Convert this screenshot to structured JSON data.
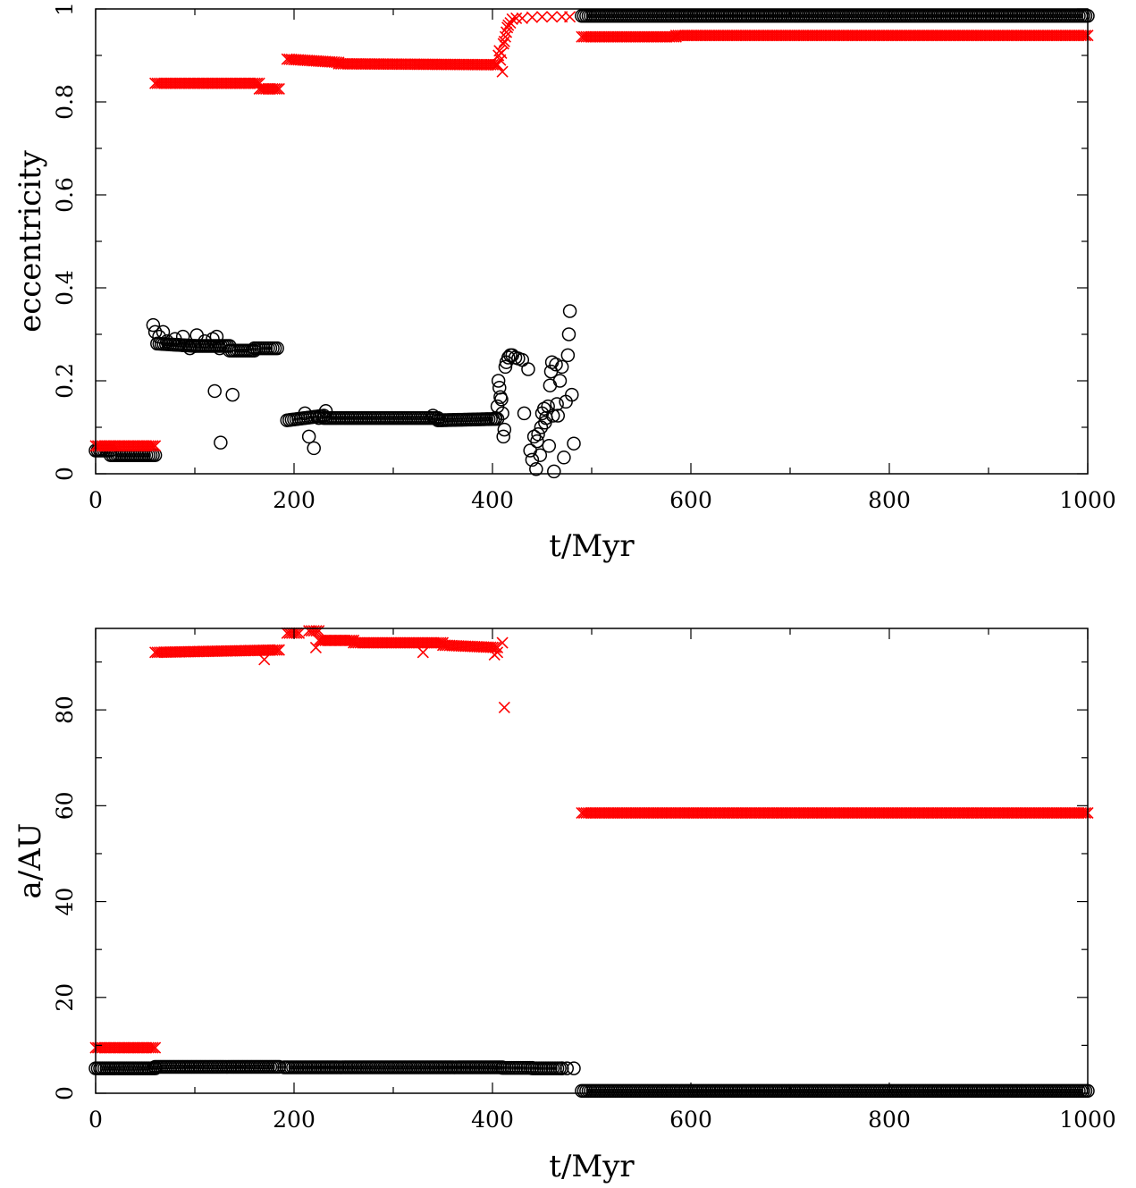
{
  "colors": {
    "black_series": "#000000",
    "red_series": "#ff0000",
    "background": "#ffffff"
  },
  "chart_data": [
    {
      "type": "scatter",
      "xlabel": "t/Myr",
      "ylabel": "eccentricity",
      "xlim": [
        0,
        1000
      ],
      "ylim": [
        0,
        1
      ],
      "xticks": [
        0,
        200,
        400,
        600,
        800,
        1000
      ],
      "yticks": [
        0,
        0.2,
        0.4,
        0.6,
        0.8,
        1
      ],
      "xtick_labels": [
        "0",
        "200",
        "400",
        "600",
        "800",
        "1000"
      ],
      "ytick_labels": [
        "0",
        "0.2",
        "0.4",
        "0.6",
        "0.8",
        "1"
      ],
      "grid": false,
      "series": [
        {
          "marker": "open-circle",
          "color": "#000000",
          "segments": [
            {
              "x": [
                0,
                15
              ],
              "y": [
                0.05,
                0.05
              ]
            },
            {
              "x": [
                15,
                60
              ],
              "y": [
                0.04,
                0.04
              ]
            },
            {
              "x": [
                62,
                100
              ],
              "y": [
                0.28,
                0.275
              ]
            },
            {
              "x": [
                100,
                135
              ],
              "y": [
                0.275,
                0.275
              ]
            },
            {
              "x": [
                135,
                160
              ],
              "y": [
                0.265,
                0.265
              ]
            },
            {
              "x": [
                160,
                183
              ],
              "y": [
                0.27,
                0.27
              ]
            },
            {
              "x": [
                193,
                230
              ],
              "y": [
                0.115,
                0.125
              ]
            },
            {
              "x": [
                230,
                345
              ],
              "y": [
                0.12,
                0.12
              ]
            },
            {
              "x": [
                345,
                405
              ],
              "y": [
                0.115,
                0.118
              ]
            },
            {
              "x": [
                490,
                1000
              ],
              "y": [
                0.985,
                0.985
              ]
            }
          ],
          "points": [
            [
              58,
              0.32
            ],
            [
              60,
              0.305
            ],
            [
              64,
              0.295
            ],
            [
              68,
              0.305
            ],
            [
              72,
              0.285
            ],
            [
              80,
              0.29
            ],
            [
              88,
              0.295
            ],
            [
              95,
              0.27
            ],
            [
              102,
              0.298
            ],
            [
              110,
              0.285
            ],
            [
              118,
              0.29
            ],
            [
              122,
              0.295
            ],
            [
              125,
              0.27
            ],
            [
              120,
              0.178
            ],
            [
              126,
              0.067
            ],
            [
              138,
              0.17
            ],
            [
              211,
              0.13
            ],
            [
              215,
              0.08
            ],
            [
              220,
              0.055
            ],
            [
              225,
              0.12
            ],
            [
              232,
              0.135
            ],
            [
              340,
              0.125
            ],
            [
              403,
              0.12
            ],
            [
              405,
              0.145
            ],
            [
              406,
              0.2
            ],
            [
              407,
              0.185
            ],
            [
              408,
              0.165
            ],
            [
              409,
              0.16
            ],
            [
              410,
              0.13
            ],
            [
              411,
              0.08
            ],
            [
              412,
              0.095
            ],
            [
              413,
              0.23
            ],
            [
              414,
              0.24
            ],
            [
              416,
              0.25
            ],
            [
              418,
              0.255
            ],
            [
              420,
              0.255
            ],
            [
              423,
              0.25
            ],
            [
              426,
              0.248
            ],
            [
              430,
              0.245
            ],
            [
              432,
              0.13
            ],
            [
              436,
              0.225
            ],
            [
              438,
              0.05
            ],
            [
              440,
              0.03
            ],
            [
              442,
              0.08
            ],
            [
              444,
              0.01
            ],
            [
              445,
              0.07
            ],
            [
              446,
              0.085
            ],
            [
              448,
              0.04
            ],
            [
              449,
              0.1
            ],
            [
              450,
              0.13
            ],
            [
              452,
              0.14
            ],
            [
              453,
              0.11
            ],
            [
              454,
              0.12
            ],
            [
              456,
              0.145
            ],
            [
              457,
              0.06
            ],
            [
              458,
              0.19
            ],
            [
              459,
              0.22
            ],
            [
              460,
              0.24
            ],
            [
              461,
              0.125
            ],
            [
              462,
              0.005
            ],
            [
              464,
              0.235
            ],
            [
              465,
              0.15
            ],
            [
              466,
              0.125
            ],
            [
              468,
              0.2
            ],
            [
              470,
              0.23
            ],
            [
              472,
              0.035
            ],
            [
              474,
              0.155
            ],
            [
              476,
              0.255
            ],
            [
              477,
              0.3
            ],
            [
              478,
              0.35
            ],
            [
              480,
              0.17
            ],
            [
              482,
              0.065
            ]
          ]
        },
        {
          "marker": "x",
          "color": "#ff0000",
          "segments": [
            {
              "x": [
                0,
                60
              ],
              "y": [
                0.06,
                0.06
              ]
            },
            {
              "x": [
                60,
                165
              ],
              "y": [
                0.84,
                0.84
              ]
            },
            {
              "x": [
                165,
                185
              ],
              "y": [
                0.828,
                0.828
              ]
            },
            {
              "x": [
                193,
                245
              ],
              "y": [
                0.892,
                0.885
              ]
            },
            {
              "x": [
                245,
                405
              ],
              "y": [
                0.882,
                0.88
              ]
            },
            {
              "x": [
                490,
                585
              ],
              "y": [
                0.94,
                0.94
              ]
            },
            {
              "x": [
                585,
                1000
              ],
              "y": [
                0.943,
                0.943
              ]
            }
          ],
          "points": [
            [
              405,
              0.88
            ],
            [
              406,
              0.9
            ],
            [
              407,
              0.91
            ],
            [
              408,
              0.89
            ],
            [
              409,
              0.905
            ],
            [
              410,
              0.865
            ],
            [
              411,
              0.925
            ],
            [
              412,
              0.93
            ],
            [
              413,
              0.94
            ],
            [
              414,
              0.95
            ],
            [
              415,
              0.96
            ],
            [
              416,
              0.965
            ],
            [
              418,
              0.97
            ],
            [
              420,
              0.978
            ],
            [
              424,
              0.98
            ],
            [
              430,
              0.98
            ],
            [
              440,
              0.982
            ],
            [
              450,
              0.983
            ],
            [
              460,
              0.983
            ],
            [
              470,
              0.983
            ],
            [
              478,
              0.983
            ]
          ]
        }
      ]
    },
    {
      "type": "scatter",
      "xlabel": "t/Myr",
      "ylabel": "a/AU",
      "xlim": [
        0,
        1000
      ],
      "ylim": [
        0,
        97
      ],
      "xticks": [
        0,
        200,
        400,
        600,
        800,
        1000
      ],
      "yticks": [
        0,
        20,
        40,
        60,
        80
      ],
      "xtick_labels": [
        "0",
        "200",
        "400",
        "600",
        "800",
        "1000"
      ],
      "ytick_labels": [
        "0",
        "20",
        "40",
        "60",
        "80"
      ],
      "grid": false,
      "series": [
        {
          "marker": "open-circle",
          "color": "#000000",
          "segments": [
            {
              "x": [
                0,
                60
              ],
              "y": [
                5.2,
                5.2
              ]
            },
            {
              "x": [
                60,
                185
              ],
              "y": [
                5.5,
                5.5
              ]
            },
            {
              "x": [
                190,
                410
              ],
              "y": [
                5.4,
                5.4
              ]
            },
            {
              "x": [
                410,
                440
              ],
              "y": [
                5.3,
                5.3
              ]
            },
            {
              "x": [
                440,
                470
              ],
              "y": [
                5.2,
                5.2
              ]
            },
            {
              "x": [
                490,
                1000
              ],
              "y": [
                0.5,
                0.5
              ]
            }
          ],
          "points": [
            [
              470,
              5.2
            ],
            [
              475,
              5.2
            ],
            [
              482,
              5.2
            ]
          ]
        },
        {
          "marker": "x",
          "color": "#ff0000",
          "segments": [
            {
              "x": [
                0,
                60
              ],
              "y": [
                9.5,
                9.5
              ]
            },
            {
              "x": [
                60,
                185
              ],
              "y": [
                92,
                92.5
              ]
            },
            {
              "x": [
                193,
                205
              ],
              "y": [
                96,
                96
              ]
            },
            {
              "x": [
                215,
                225
              ],
              "y": [
                96.5,
                96.5
              ]
            },
            {
              "x": [
                225,
                260
              ],
              "y": [
                94.5,
                94.5
              ]
            },
            {
              "x": [
                260,
                350
              ],
              "y": [
                94,
                94
              ]
            },
            {
              "x": [
                350,
                405
              ],
              "y": [
                93.5,
                93
              ]
            }
          ],
          "points": [
            [
              170,
              90.5
            ],
            [
              222,
              93
            ],
            [
              330,
              92
            ],
            [
              402,
              91.5
            ],
            [
              405,
              92
            ],
            [
              410,
              94
            ],
            [
              412,
              80.5
            ]
          ],
          "segments_late": {
            "x": [
              490,
              1000
            ],
            "y": 58.5
          }
        }
      ]
    }
  ]
}
